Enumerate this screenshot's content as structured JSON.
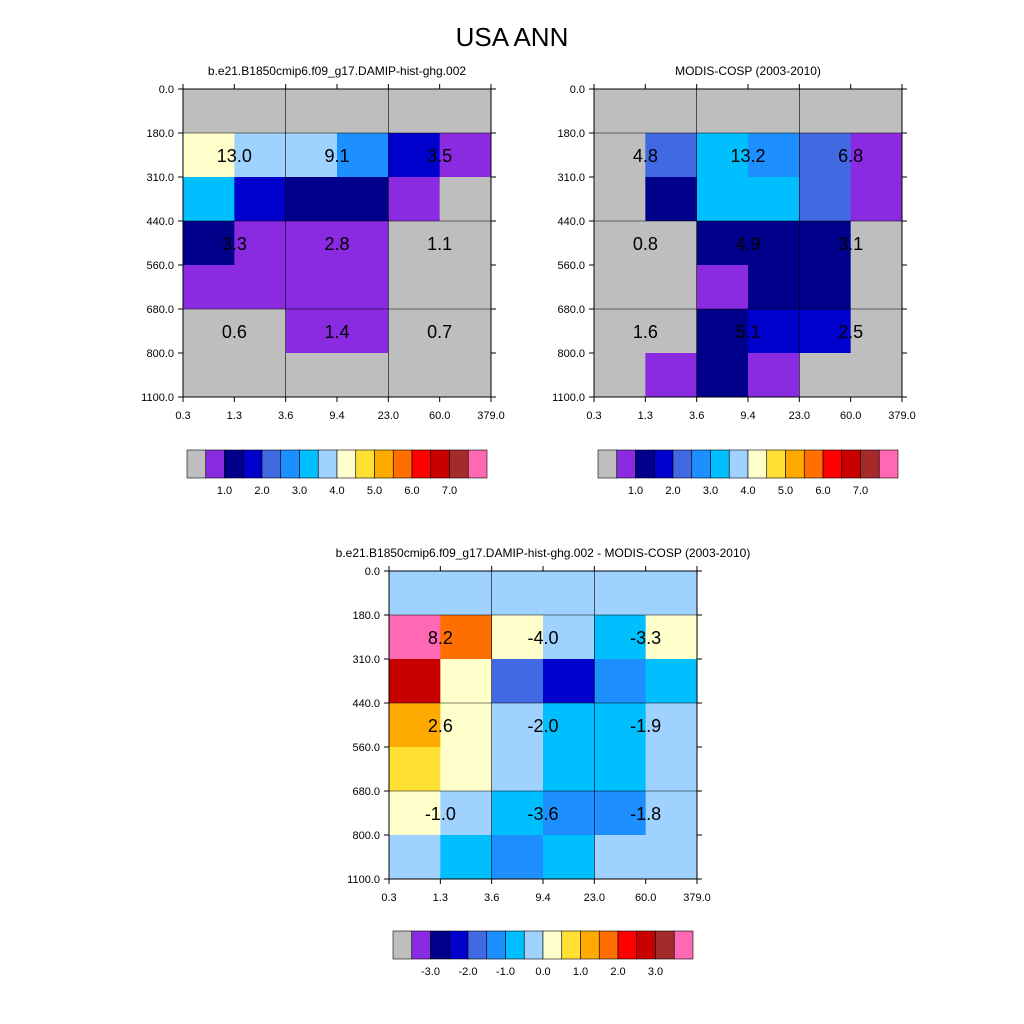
{
  "figure_title": "USA ANN",
  "chart_data": [
    {
      "type": "heatmap",
      "title": "b.e21.B1850cmip6.f09_g17.DAMIP-hist-ghg.002",
      "x_ticks": [
        "0.3",
        "1.3",
        "3.6",
        "9.4",
        "23.0",
        "60.0",
        "379.0"
      ],
      "y_ticks": [
        "0.0",
        "180.0",
        "310.0",
        "440.0",
        "560.0",
        "680.0",
        "800.0",
        "1100.0"
      ],
      "cells": [
        [
          "#bebebe",
          "#bebebe",
          "#bebebe",
          "#bebebe",
          "#bebebe",
          "#bebebe"
        ],
        [
          "#ffffcc",
          "#a0d2ff",
          "#a0d2ff",
          "#1e8fff",
          "#0000cd",
          "#8a2be2"
        ],
        [
          "#00bfff",
          "#0000cd",
          "#00008b",
          "#00008b",
          "#8a2be2",
          "#bebebe"
        ],
        [
          "#00008b",
          "#8a2be2",
          "#8a2be2",
          "#8a2be2",
          "#bebebe",
          "#bebebe"
        ],
        [
          "#8a2be2",
          "#8a2be2",
          "#8a2be2",
          "#8a2be2",
          "#bebebe",
          "#bebebe"
        ],
        [
          "#bebebe",
          "#bebebe",
          "#8a2be2",
          "#8a2be2",
          "#bebebe",
          "#bebebe"
        ],
        [
          "#bebebe",
          "#bebebe",
          "#bebebe",
          "#bebebe",
          "#bebebe",
          "#bebebe"
        ]
      ],
      "block_values": [
        [
          "",
          "",
          ""
        ],
        [
          "13.0",
          "9.1",
          "3.5"
        ],
        [
          "3.3",
          "2.8",
          "1.1"
        ],
        [
          "0.6",
          "1.4",
          "0.7"
        ]
      ],
      "colorbar": {
        "colors": [
          "#bebebe",
          "#8a2be2",
          "#00008b",
          "#0000cd",
          "#4169e1",
          "#1e8fff",
          "#00bfff",
          "#a0d2ff",
          "#ffffcc",
          "#ffe033",
          "#ffaa00",
          "#ff6e00",
          "#ff0000",
          "#c80000",
          "#a52a2a",
          "#ff69b4"
        ],
        "labels": [
          "1.0",
          "2.0",
          "3.0",
          "4.0",
          "5.0",
          "6.0",
          "7.0"
        ]
      }
    },
    {
      "type": "heatmap",
      "title": "MODIS-COSP (2003-2010)",
      "x_ticks": [
        "0.3",
        "1.3",
        "3.6",
        "9.4",
        "23.0",
        "60.0",
        "379.0"
      ],
      "y_ticks": [
        "0.0",
        "180.0",
        "310.0",
        "440.0",
        "560.0",
        "680.0",
        "800.0",
        "1100.0"
      ],
      "cells": [
        [
          "#bebebe",
          "#bebebe",
          "#bebebe",
          "#bebebe",
          "#bebebe",
          "#bebebe"
        ],
        [
          "#bebebe",
          "#4169e1",
          "#00bfff",
          "#1e8fff",
          "#4169e1",
          "#8a2be2"
        ],
        [
          "#bebebe",
          "#00008b",
          "#00bfff",
          "#00bfff",
          "#4169e1",
          "#8a2be2"
        ],
        [
          "#bebebe",
          "#bebebe",
          "#00008b",
          "#00008b",
          "#00008b",
          "#bebebe"
        ],
        [
          "#bebebe",
          "#bebebe",
          "#8a2be2",
          "#00008b",
          "#00008b",
          "#bebebe"
        ],
        [
          "#bebebe",
          "#bebebe",
          "#00008b",
          "#0000cd",
          "#0000cd",
          "#bebebe"
        ],
        [
          "#bebebe",
          "#8a2be2",
          "#00008b",
          "#8a2be2",
          "#bebebe",
          "#bebebe"
        ]
      ],
      "block_values": [
        [
          "",
          "",
          ""
        ],
        [
          "4.8",
          "13.2",
          "6.8"
        ],
        [
          "0.8",
          "4.9",
          "3.1"
        ],
        [
          "1.6",
          "5.1",
          "2.5"
        ]
      ],
      "colorbar": {
        "colors": [
          "#bebebe",
          "#8a2be2",
          "#00008b",
          "#0000cd",
          "#4169e1",
          "#1e8fff",
          "#00bfff",
          "#a0d2ff",
          "#ffffcc",
          "#ffe033",
          "#ffaa00",
          "#ff6e00",
          "#ff0000",
          "#c80000",
          "#a52a2a",
          "#ff69b4"
        ],
        "labels": [
          "1.0",
          "2.0",
          "3.0",
          "4.0",
          "5.0",
          "6.0",
          "7.0"
        ]
      }
    },
    {
      "type": "heatmap",
      "title": "b.e21.B1850cmip6.f09_g17.DAMIP-hist-ghg.002 - MODIS-COSP (2003-2010)",
      "x_ticks": [
        "0.3",
        "1.3",
        "3.6",
        "9.4",
        "23.0",
        "60.0",
        "379.0"
      ],
      "y_ticks": [
        "0.0",
        "180.0",
        "310.0",
        "440.0",
        "560.0",
        "680.0",
        "800.0",
        "1100.0"
      ],
      "cells": [
        [
          "#a0d2ff",
          "#a0d2ff",
          "#a0d2ff",
          "#a0d2ff",
          "#a0d2ff",
          "#a0d2ff"
        ],
        [
          "#ff69b4",
          "#ff6e00",
          "#ffffcc",
          "#a0d2ff",
          "#00bfff",
          "#ffffcc"
        ],
        [
          "#c80000",
          "#ffffcc",
          "#4169e1",
          "#0000cd",
          "#1e8fff",
          "#00bfff"
        ],
        [
          "#ffaa00",
          "#ffffcc",
          "#a0d2ff",
          "#00bfff",
          "#00bfff",
          "#a0d2ff"
        ],
        [
          "#ffe033",
          "#ffffcc",
          "#a0d2ff",
          "#00bfff",
          "#00bfff",
          "#a0d2ff"
        ],
        [
          "#ffffcc",
          "#a0d2ff",
          "#00bfff",
          "#1e8fff",
          "#1e8fff",
          "#a0d2ff"
        ],
        [
          "#a0d2ff",
          "#00bfff",
          "#1e8fff",
          "#00bfff",
          "#a0d2ff",
          "#a0d2ff"
        ]
      ],
      "block_values": [
        [
          "",
          "",
          ""
        ],
        [
          "8.2",
          "-4.0",
          "-3.3"
        ],
        [
          "2.6",
          "-2.0",
          "-1.9"
        ],
        [
          "-1.0",
          "-3.6",
          "-1.8"
        ]
      ],
      "colorbar": {
        "colors": [
          "#bebebe",
          "#8a2be2",
          "#00008b",
          "#0000cd",
          "#4169e1",
          "#1e8fff",
          "#00bfff",
          "#a0d2ff",
          "#ffffcc",
          "#ffe033",
          "#ffaa00",
          "#ff6e00",
          "#ff0000",
          "#c80000",
          "#a52a2a",
          "#ff69b4"
        ],
        "labels": [
          "-3.0",
          "-2.0",
          "-1.0",
          "0.0",
          "1.0",
          "2.0",
          "3.0"
        ]
      }
    }
  ]
}
